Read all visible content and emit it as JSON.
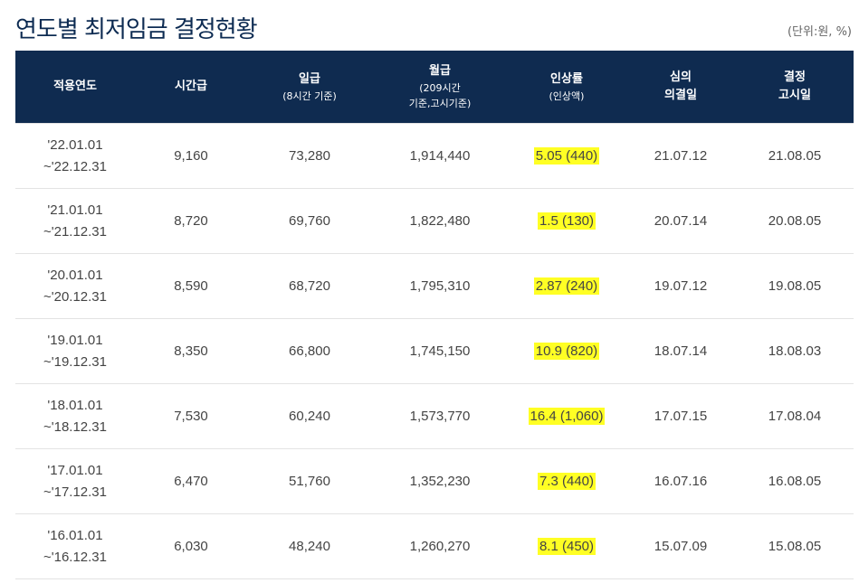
{
  "title": "연도별 최저임금 결정현황",
  "unit": "(단위:원, %)",
  "columns": [
    {
      "label": "적용연도",
      "sub": ""
    },
    {
      "label": "시간급",
      "sub": ""
    },
    {
      "label": "일급",
      "sub": "(8시간 기준)"
    },
    {
      "label": "월급",
      "sub": "(209시간\n기준,고시기준)"
    },
    {
      "label": "인상률",
      "sub": "(인상액)"
    },
    {
      "label": "심의",
      "sub": "의결일"
    },
    {
      "label": "결정",
      "sub": "고시일"
    }
  ],
  "rows": [
    {
      "start": "'22.01.01",
      "end": "~'22.12.31",
      "hourly": "9,160",
      "daily": "73,280",
      "monthly": "1,914,440",
      "increase": "5.05 (440)",
      "decision": "21.07.12",
      "notice": "21.08.05"
    },
    {
      "start": "'21.01.01",
      "end": "~'21.12.31",
      "hourly": "8,720",
      "daily": "69,760",
      "monthly": "1,822,480",
      "increase": "1.5 (130)",
      "decision": "20.07.14",
      "notice": "20.08.05"
    },
    {
      "start": "'20.01.01",
      "end": "~'20.12.31",
      "hourly": "8,590",
      "daily": "68,720",
      "monthly": "1,795,310",
      "increase": "2.87 (240)",
      "decision": "19.07.12",
      "notice": "19.08.05"
    },
    {
      "start": "'19.01.01",
      "end": "~'19.12.31",
      "hourly": "8,350",
      "daily": "66,800",
      "monthly": "1,745,150",
      "increase": "10.9 (820)",
      "decision": "18.07.14",
      "notice": "18.08.03"
    },
    {
      "start": "'18.01.01",
      "end": "~'18.12.31",
      "hourly": "7,530",
      "daily": "60,240",
      "monthly": "1,573,770",
      "increase": "16.4 (1,060)",
      "decision": "17.07.15",
      "notice": "17.08.04"
    },
    {
      "start": "'17.01.01",
      "end": "~'17.12.31",
      "hourly": "6,470",
      "daily": "51,760",
      "monthly": "1,352,230",
      "increase": "7.3 (440)",
      "decision": "16.07.16",
      "notice": "16.08.05"
    },
    {
      "start": "'16.01.01",
      "end": "~'16.12.31",
      "hourly": "6,030",
      "daily": "48,240",
      "monthly": "1,260,270",
      "increase": "8.1 (450)",
      "decision": "15.07.09",
      "notice": "15.08.05"
    }
  ],
  "highlight_color": "#ffff24",
  "header_color": "#0f2b50"
}
